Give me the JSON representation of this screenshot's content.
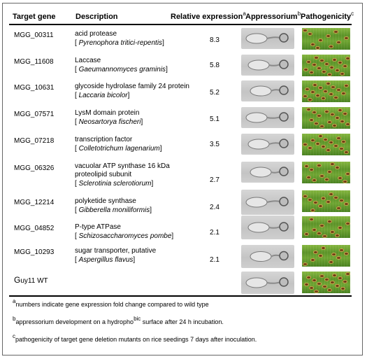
{
  "headers": {
    "target_gene": "Target gene",
    "description": "Description",
    "relative_expression": "Relative expression",
    "relative_expression_sup": "a",
    "appressorium": "Appressorium",
    "appressorium_sup": "b",
    "pathogenicity": "Pathogenicity",
    "pathogenicity_sup": "c"
  },
  "rows": [
    {
      "gene": "MGG_00311",
      "desc1": "acid protease",
      "desc_org": "Pyrenophora tritici-repentis",
      "value": "8.3"
    },
    {
      "gene": "MGG_11608",
      "desc1": "Laccase",
      "desc_org": "Gaeumannomyces graminis",
      "value": "5.8"
    },
    {
      "gene": "MGG_10631",
      "desc1": "glycoside hydrolase family 24 protein",
      "desc_org": "Laccaria bicolor",
      "value": "5.2"
    },
    {
      "gene": "MGG_07571",
      "desc1": "LysM domain protein",
      "desc_org": "Neosartorya fischeri",
      "value": "5.1"
    },
    {
      "gene": "MGG_07218",
      "desc1": "transcription factor",
      "desc_org": "Colletotrichum lagenarium",
      "value": "3.5"
    },
    {
      "gene": "MGG_06326",
      "desc1": "vacuolar ATP synthase 16 kDa",
      "desc1b": "proteolipid subunit",
      "desc_org": "Sclerotinia sclerotiorum",
      "value": "2.7"
    },
    {
      "gene": "MGG_12214",
      "desc1": "polyketide synthase",
      "desc_org": "Gibberella moniliformis",
      "value": "2.4"
    },
    {
      "gene": "MGG_04852",
      "desc1": "P-type ATPase",
      "desc_org": "Schizosaccharomyces pombe",
      "value": "2.1"
    },
    {
      "gene": "MGG_10293",
      "desc1": "sugar transporter, putative",
      "desc_org": "Aspergillus flavus",
      "value": "2.1"
    }
  ],
  "wild_type": {
    "first": "G",
    "rest": "uy11",
    "suffix": "WT"
  },
  "footnotes": {
    "a_mark": "a",
    "a_text": "numbers indicate gene expression fold change compared to wild type",
    "b_mark": "b",
    "b_text_1": "appressorium development on a hydropho",
    "b_text_2": "bic",
    "b_text_3": " surface after 24 h incubation.",
    "c_mark": "c",
    "c_text": "pathogenicity of target gene deletion mutants on rice seedings 7 days after inoculation."
  }
}
